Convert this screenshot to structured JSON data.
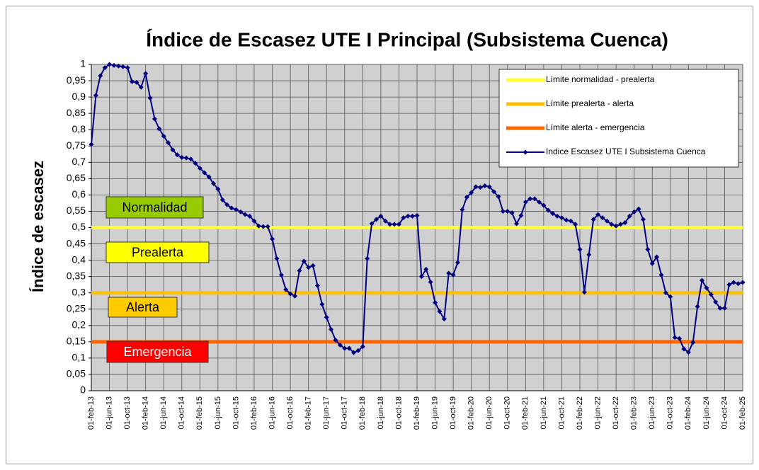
{
  "chart_data": {
    "type": "line",
    "title": "Índice de Escasez UTE I Principal (Subsistema Cuenca)",
    "y_label": "Índice de escasez",
    "categories": [
      "01-feb-13",
      null,
      null,
      null,
      "01-jun-13",
      null,
      null,
      null,
      "01-oct-13",
      null,
      null,
      null,
      "01-feb-14",
      null,
      null,
      null,
      "01-jun-14",
      null,
      null,
      null,
      "01-oct-14",
      null,
      null,
      null,
      "01-feb-15",
      null,
      null,
      null,
      "01-jun-15",
      null,
      null,
      null,
      "01-oct-15",
      null,
      null,
      null,
      "01-feb-16",
      null,
      null,
      null,
      "01-jun-16",
      null,
      null,
      null,
      "01-oct-16",
      null,
      null,
      null,
      "01-feb-17",
      null,
      null,
      null,
      "01-jun-17",
      null,
      null,
      null,
      "01-oct-17",
      null,
      null,
      null,
      "01-feb-18",
      null,
      null,
      null,
      "01-jun-18",
      null,
      null,
      null,
      "01-oct-18",
      null,
      null,
      null,
      "01-feb-19",
      null,
      null,
      null,
      "01-jun-19",
      null,
      null,
      null,
      "01-oct-19",
      null,
      null,
      null,
      "01-feb-20",
      null,
      null,
      null,
      "01-jun-20",
      null,
      null,
      null,
      "01-oct-20",
      null,
      null,
      null,
      "01-feb-21",
      null,
      null,
      null,
      "01-jun-21",
      null,
      null,
      null,
      "01-oct-21",
      null,
      null,
      null,
      "01-feb-22",
      null,
      null,
      null,
      "01-jun-22",
      null,
      null,
      null,
      "01-oct-22",
      null,
      null,
      null,
      "01-feb-23",
      null,
      null,
      null,
      "01-jun-23",
      null,
      null,
      null,
      "01-oct-23",
      null,
      null,
      null,
      "01-feb-24",
      null,
      null,
      null,
      "01-jun-24",
      null,
      null,
      null,
      "01-oct-24",
      null,
      null,
      null,
      "01-feb-25"
    ],
    "series": [
      {
        "name": "Indice Escasez UTE I Subsistema Cuenca",
        "color": "#000080",
        "values": [
          0.755,
          0.905,
          0.965,
          0.99,
          1.0,
          0.997,
          0.995,
          0.993,
          0.99,
          0.947,
          0.945,
          0.93,
          0.972,
          0.897,
          0.833,
          0.803,
          0.78,
          0.76,
          0.738,
          0.723,
          0.715,
          0.713,
          0.71,
          0.697,
          0.682,
          0.668,
          0.655,
          0.635,
          0.618,
          0.585,
          0.57,
          0.56,
          0.555,
          0.548,
          0.54,
          0.535,
          0.52,
          0.505,
          0.503,
          0.503,
          0.465,
          0.405,
          0.355,
          0.31,
          0.297,
          0.29,
          0.368,
          0.397,
          0.378,
          0.383,
          0.322,
          0.265,
          0.225,
          0.188,
          0.155,
          0.14,
          0.13,
          0.13,
          0.117,
          0.123,
          0.135,
          0.405,
          0.512,
          0.525,
          0.535,
          0.52,
          0.51,
          0.51,
          0.51,
          0.53,
          0.535,
          0.535,
          0.537,
          0.35,
          0.372,
          0.333,
          0.27,
          0.243,
          0.22,
          0.36,
          0.355,
          0.393,
          0.555,
          0.593,
          0.607,
          0.625,
          0.623,
          0.628,
          0.625,
          0.61,
          0.595,
          0.55,
          0.55,
          0.545,
          0.512,
          0.537,
          0.578,
          0.588,
          0.588,
          0.578,
          0.568,
          0.553,
          0.543,
          0.535,
          0.53,
          0.523,
          0.52,
          0.51,
          0.433,
          0.302,
          0.417,
          0.525,
          0.54,
          0.53,
          0.52,
          0.51,
          0.505,
          0.51,
          0.515,
          0.535,
          0.548,
          0.557,
          0.525,
          0.433,
          0.39,
          0.41,
          0.355,
          0.3,
          0.288,
          0.163,
          0.16,
          0.128,
          0.118,
          0.148,
          0.258,
          0.338,
          0.315,
          0.295,
          0.272,
          0.253,
          0.253,
          0.325,
          0.332,
          0.328,
          0.332
        ]
      }
    ],
    "thresholds": [
      {
        "name": "Límite normalidad - prealerta",
        "color": "#ffff33",
        "value": 0.5
      },
      {
        "name": "Límite prealerta - alerta",
        "color": "#ffc000",
        "value": 0.3
      },
      {
        "name": "Límite alerta - emergencia",
        "color": "#ff6600",
        "value": 0.15
      }
    ],
    "annotations": [
      {
        "text": "Normalidad",
        "color": "#99cc00"
      },
      {
        "text": "Prealerta",
        "color": "#ffff00"
      },
      {
        "text": "Alerta",
        "color": "#ffcc00"
      },
      {
        "text": "Emergencia",
        "color": "#ff0000"
      }
    ],
    "ylim": [
      0,
      1
    ],
    "yticks": [
      0,
      {
        "value": 0.05,
        "label": "0,05"
      },
      {
        "value": 0.1,
        "label": "0,1"
      },
      {
        "value": 0.15,
        "label": "0,15"
      },
      {
        "value": 0.2,
        "label": "0,2"
      },
      {
        "value": 0.25,
        "label": "0,25"
      },
      {
        "value": 0.3,
        "label": "0,3"
      },
      {
        "value": 0.35,
        "label": "0,35"
      },
      {
        "value": 0.4,
        "label": "0,4"
      },
      {
        "value": 0.45,
        "label": "0,45"
      },
      {
        "value": 0.5,
        "label": "0,5"
      },
      {
        "value": 0.55,
        "label": "0,55"
      },
      {
        "value": 0.6,
        "label": "0,6"
      },
      {
        "value": 0.65,
        "label": "0,65"
      },
      {
        "value": 0.7,
        "label": "0,7"
      },
      {
        "value": 0.75,
        "label": "0,75"
      },
      {
        "value": 0.8,
        "label": "0,8"
      },
      {
        "value": 0.85,
        "label": "0,85"
      },
      {
        "value": 0.9,
        "label": "0,9"
      },
      {
        "value": 0.95,
        "label": "0,95"
      },
      1
    ],
    "grid": true
  }
}
